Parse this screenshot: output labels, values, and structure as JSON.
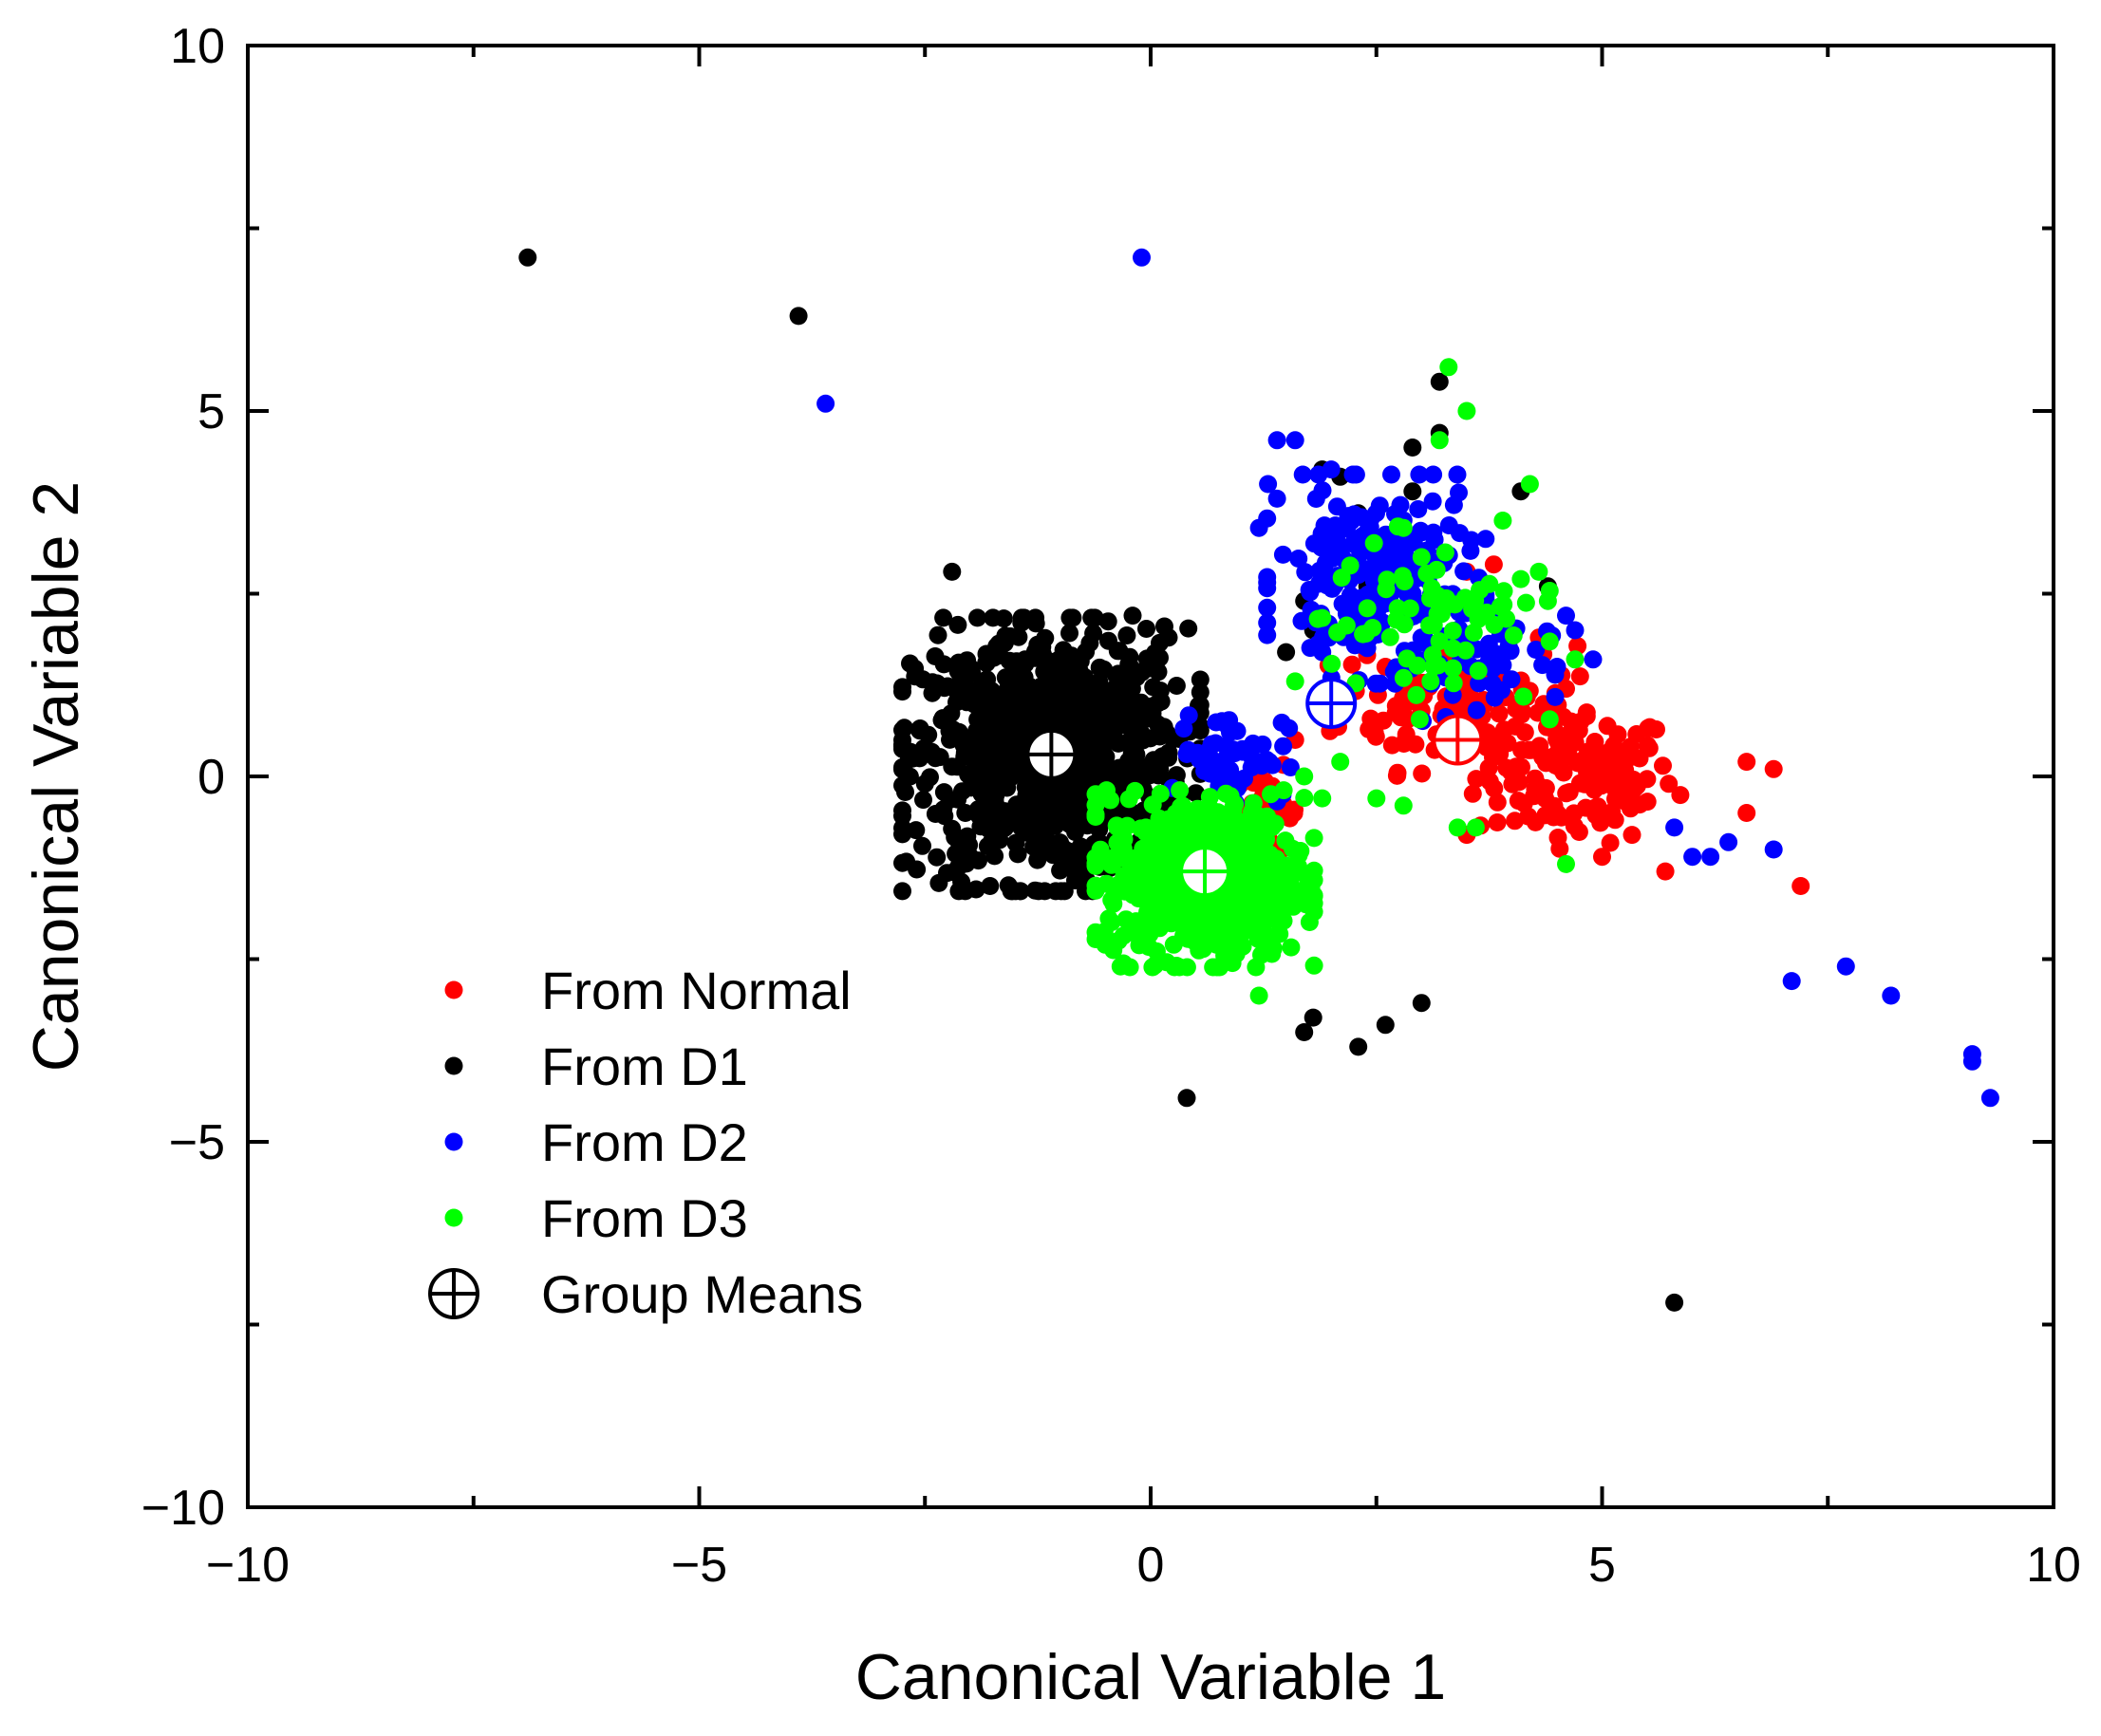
{
  "chart_data": {
    "type": "scatter",
    "title": "",
    "xlabel": "Canonical Variable 1",
    "ylabel": "Canonical Variable 2",
    "xlim": [
      -10,
      10
    ],
    "ylim": [
      -10,
      10
    ],
    "x_ticks": [
      -10,
      -5,
      0,
      5,
      10
    ],
    "y_ticks": [
      -10,
      -5,
      0,
      5,
      10
    ],
    "x_tick_labels": [
      "−10",
      "−5",
      "0",
      "5",
      "10"
    ],
    "y_tick_labels": [
      "−10",
      "−5",
      "0",
      "5",
      "10"
    ],
    "grid": false,
    "legend_position": "bottom-left",
    "series": [
      {
        "name": "From Normal",
        "color": "#ff0000",
        "points": [
          [
            4.9,
            0.2
          ],
          [
            6.6,
            0.2
          ],
          [
            6.9,
            0.1
          ],
          [
            5.7,
            -1.3
          ],
          [
            7.2,
            -1.5
          ],
          [
            3.5,
            -0.8
          ],
          [
            4.6,
            1.2
          ],
          [
            3.5,
            2.8
          ],
          [
            3.8,
            2.9
          ],
          [
            1.6,
            0.5
          ],
          [
            1.0,
            -0.9
          ],
          [
            0.9,
            -1.0
          ],
          [
            1.4,
            -0.4
          ],
          [
            6.6,
            -0.5
          ],
          [
            5.0,
            -1.1
          ],
          [
            4.3,
            1.9
          ],
          [
            3.4,
            1.7
          ],
          [
            2.6,
            1.5
          ],
          [
            3.0,
            0.9
          ]
        ],
        "clusters": [
          {
            "center": [
              4.7,
              0.0
            ],
            "spread": [
              0.55,
              0.45
            ],
            "count": 140
          },
          {
            "center": [
              3.4,
              1.0
            ],
            "spread": [
              0.65,
              0.45
            ],
            "count": 130
          },
          {
            "center": [
              1.3,
              -0.5
            ],
            "spread": [
              0.18,
              0.3
            ],
            "count": 35
          }
        ]
      },
      {
        "name": "From D1",
        "color": "#000000",
        "points": [
          [
            -6.9,
            7.1
          ],
          [
            -3.9,
            6.3
          ],
          [
            -2.2,
            2.8
          ],
          [
            3.2,
            5.4
          ],
          [
            3.2,
            4.7
          ],
          [
            2.9,
            4.5
          ],
          [
            2.1,
            4.1
          ],
          [
            2.9,
            3.9
          ],
          [
            4.1,
            3.9
          ],
          [
            1.7,
            2.4
          ],
          [
            1.8,
            2.0
          ],
          [
            1.5,
            1.7
          ],
          [
            1.8,
            -3.3
          ],
          [
            1.7,
            -3.5
          ],
          [
            2.3,
            -3.7
          ],
          [
            2.6,
            -3.4
          ],
          [
            3.0,
            -3.1
          ],
          [
            0.4,
            -4.4
          ],
          [
            5.8,
            -7.2
          ],
          [
            2.3,
            3.6
          ],
          [
            2.6,
            3.0
          ],
          [
            1.9,
            4.2
          ],
          [
            0.2,
            1.9
          ],
          [
            -0.2,
            2.2
          ],
          [
            2.4,
            2.6
          ],
          [
            4.4,
            2.6
          ],
          [
            -2.5,
            -0.1
          ]
        ],
        "clusters": [
          {
            "center": [
              -1.1,
              0.3
            ],
            "spread": [
              0.75,
              0.85
            ],
            "count": 900
          }
        ]
      },
      {
        "name": "From D2",
        "color": "#0000ff",
        "points": [
          [
            -0.1,
            7.1
          ],
          [
            -3.6,
            5.1
          ],
          [
            1.4,
            4.6
          ],
          [
            1.6,
            4.6
          ],
          [
            1.3,
            4.0
          ],
          [
            2.0,
            4.2
          ],
          [
            1.2,
            3.4
          ],
          [
            4.6,
            2.2
          ],
          [
            4.7,
            2.0
          ],
          [
            4.5,
            1.5
          ],
          [
            4.9,
            1.6
          ],
          [
            5.8,
            -0.7
          ],
          [
            6.0,
            -1.1
          ],
          [
            6.2,
            -1.1
          ],
          [
            6.4,
            -0.9
          ],
          [
            6.9,
            -1.0
          ],
          [
            7.1,
            -2.8
          ],
          [
            7.7,
            -2.6
          ],
          [
            8.2,
            -3.0
          ],
          [
            9.1,
            -3.8
          ],
          [
            9.1,
            -3.9
          ],
          [
            9.3,
            -4.4
          ],
          [
            1.9,
            1.7
          ],
          [
            1.4,
            3.8
          ]
        ],
        "clusters": [
          {
            "center": [
              2.5,
              2.7
            ],
            "spread": [
              0.55,
              0.65
            ],
            "count": 220
          },
          {
            "center": [
              0.9,
              0.3
            ],
            "spread": [
              0.3,
              0.3
            ],
            "count": 60
          },
          {
            "center": [
              3.6,
              1.5
            ],
            "spread": [
              0.4,
              0.4
            ],
            "count": 40
          }
        ]
      },
      {
        "name": "From D3",
        "color": "#00ff00",
        "points": [
          [
            3.3,
            5.6
          ],
          [
            3.5,
            5.0
          ],
          [
            3.2,
            4.6
          ],
          [
            4.2,
            4.0
          ],
          [
            3.9,
            3.5
          ],
          [
            2.8,
            3.4
          ],
          [
            1.7,
            -0.0
          ],
          [
            1.9,
            -0.3
          ],
          [
            2.5,
            -0.3
          ],
          [
            2.8,
            -0.4
          ],
          [
            3.4,
            -0.7
          ],
          [
            3.6,
            -0.7
          ],
          [
            4.6,
            -1.2
          ],
          [
            1.2,
            -3.0
          ],
          [
            4.7,
            1.6
          ],
          [
            1.6,
            1.3
          ],
          [
            2.1,
            0.2
          ],
          [
            4.3,
            2.8
          ],
          [
            4.4,
            2.4
          ],
          [
            4.1,
            2.7
          ],
          [
            3.0,
            3.0
          ],
          [
            2.4,
            2.3
          ],
          [
            3.1,
            1.3
          ]
        ],
        "clusters": [
          {
            "center": [
              0.6,
              -1.4
            ],
            "spread": [
              0.55,
              0.55
            ],
            "count": 600
          },
          {
            "center": [
              3.1,
              2.1
            ],
            "spread": [
              0.6,
              0.6
            ],
            "count": 70
          }
        ]
      }
    ],
    "group_means": {
      "label": "Group Means",
      "marker": "circle-plus",
      "points": [
        {
          "group": "From Normal",
          "x": 3.4,
          "y": 0.5,
          "color": "#ff0000"
        },
        {
          "group": "From D1",
          "x": -1.1,
          "y": 0.3,
          "color": "#000000"
        },
        {
          "group": "From D2",
          "x": 2.0,
          "y": 1.0,
          "color": "#0000ff"
        },
        {
          "group": "From D3",
          "x": 0.6,
          "y": -1.3,
          "color": "#00ff00"
        }
      ]
    },
    "legend": [
      {
        "label": "From Normal",
        "marker": "dot",
        "color": "#ff0000"
      },
      {
        "label": "From D1",
        "marker": "dot",
        "color": "#000000"
      },
      {
        "label": "From D2",
        "marker": "dot",
        "color": "#0000ff"
      },
      {
        "label": "From D3",
        "marker": "dot",
        "color": "#00ff00"
      },
      {
        "label": "Group Means",
        "marker": "circle-plus",
        "color": "#000000"
      }
    ]
  }
}
